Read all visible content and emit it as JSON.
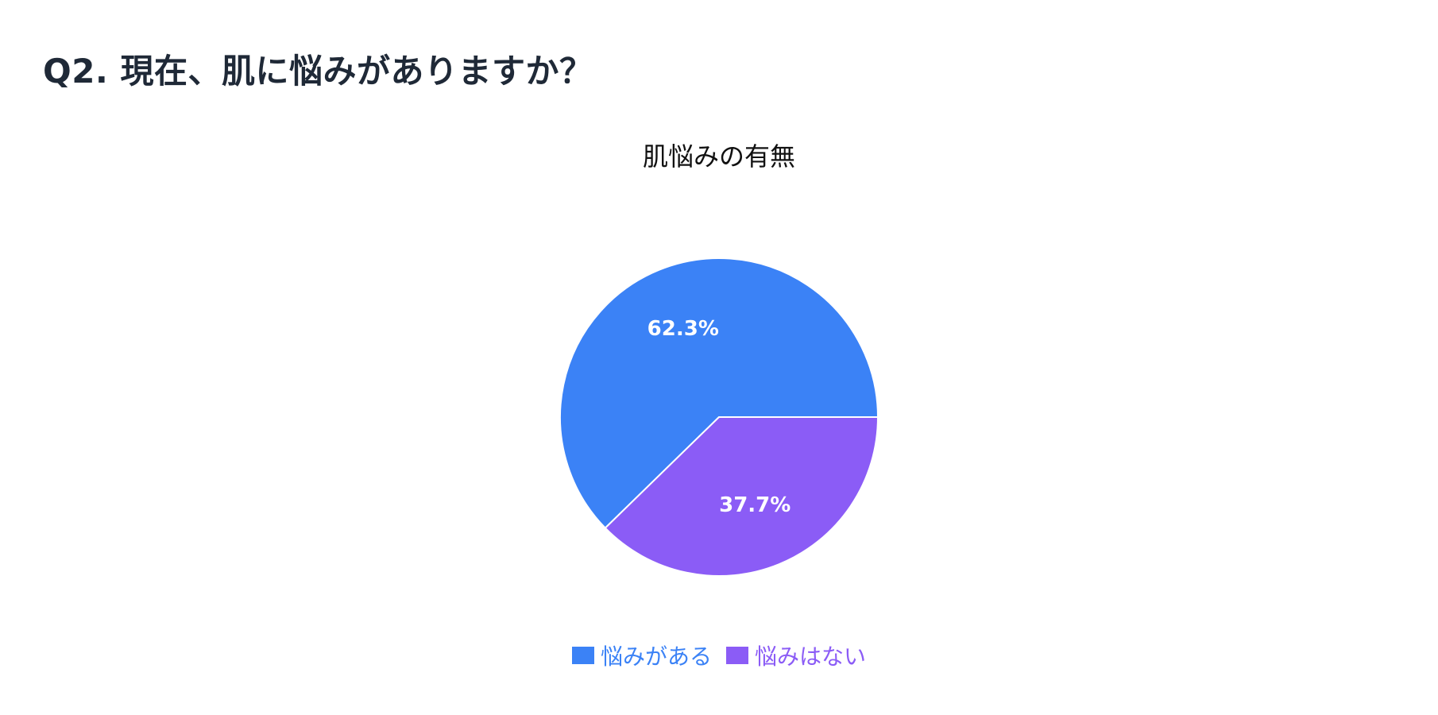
{
  "heading": "Q2. 現在、肌に悩みがありますか？",
  "chart_data": {
    "type": "pie",
    "title": "肌悩みの有無",
    "legend_position": "bottom",
    "slices": [
      {
        "label": "悩みがある",
        "value": 62.3,
        "display": "62.3%",
        "color": "#3b82f6"
      },
      {
        "label": "悩みはない",
        "value": 37.7,
        "display": "37.7%",
        "color": "#8b5cf6"
      }
    ]
  }
}
